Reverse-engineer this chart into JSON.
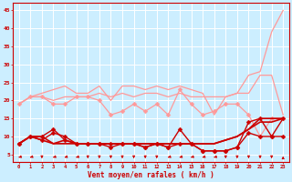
{
  "x": [
    0,
    1,
    2,
    3,
    4,
    5,
    6,
    7,
    8,
    9,
    10,
    11,
    12,
    13,
    14,
    15,
    16,
    17,
    18,
    19,
    20,
    21,
    22,
    23
  ],
  "series": [
    {
      "color": "#FF9999",
      "linewidth": 0.9,
      "marker": null,
      "y": [
        19,
        21,
        21,
        20,
        21,
        21,
        21,
        22,
        21,
        22,
        21,
        22,
        22,
        21,
        22,
        21,
        21,
        21,
        21,
        22,
        22,
        27,
        27,
        16
      ]
    },
    {
      "color": "#FF9999",
      "linewidth": 0.9,
      "marker": null,
      "y": [
        19,
        21,
        22,
        23,
        24,
        22,
        22,
        24,
        20,
        24,
        24,
        23,
        24,
        23,
        24,
        23,
        22,
        16,
        21,
        22,
        27,
        28,
        39,
        45
      ]
    },
    {
      "color": "#FF9999",
      "linewidth": 0.9,
      "marker": "D",
      "markersize": 2.5,
      "y": [
        19,
        21,
        21,
        19,
        19,
        21,
        21,
        20,
        16,
        17,
        19,
        17,
        19,
        16,
        23,
        19,
        16,
        17,
        19,
        19,
        16,
        10,
        15,
        15
      ]
    },
    {
      "color": "#CC0000",
      "linewidth": 1.0,
      "marker": "D",
      "markersize": 2.5,
      "y": [
        8,
        10,
        9,
        11,
        10,
        8,
        8,
        8,
        8,
        8,
        8,
        7,
        8,
        7,
        8,
        8,
        6,
        6,
        6,
        7,
        11,
        10,
        10,
        10
      ]
    },
    {
      "color": "#CC0000",
      "linewidth": 1.0,
      "marker": "D",
      "markersize": 2.5,
      "y": [
        8,
        10,
        10,
        12,
        9,
        8,
        8,
        8,
        7,
        8,
        8,
        7,
        8,
        7,
        12,
        8,
        6,
        6,
        6,
        7,
        14,
        15,
        10,
        15
      ]
    },
    {
      "color": "#CC0000",
      "linewidth": 1.2,
      "marker": null,
      "y": [
        8,
        10,
        9,
        8,
        8,
        8,
        8,
        8,
        8,
        8,
        8,
        8,
        8,
        8,
        8,
        8,
        8,
        8,
        9,
        10,
        12,
        14,
        14,
        15
      ]
    },
    {
      "color": "#CC0000",
      "linewidth": 1.2,
      "marker": null,
      "y": [
        8,
        10,
        10,
        8,
        9,
        8,
        8,
        8,
        8,
        8,
        8,
        8,
        8,
        8,
        8,
        8,
        8,
        8,
        9,
        10,
        12,
        15,
        15,
        15
      ]
    }
  ],
  "arrow_angles": [
    225,
    225,
    270,
    225,
    225,
    225,
    270,
    270,
    270,
    270,
    270,
    270,
    270,
    225,
    225,
    225,
    225,
    225,
    270,
    270,
    270,
    270,
    270,
    90
  ],
  "xlim": [
    -0.5,
    23.5
  ],
  "ylim": [
    3,
    47
  ],
  "yticks": [
    5,
    10,
    15,
    20,
    25,
    30,
    35,
    40,
    45
  ],
  "xticks": [
    0,
    1,
    2,
    3,
    4,
    5,
    6,
    7,
    8,
    9,
    10,
    11,
    12,
    13,
    14,
    15,
    16,
    17,
    18,
    19,
    20,
    21,
    22,
    23
  ],
  "xlabel": "Vent moyen/en rafales ( km/h )",
  "bg_color": "#cceeff",
  "grid_color": "#ffffff",
  "axis_color": "#CC0000",
  "text_color": "#CC0000"
}
